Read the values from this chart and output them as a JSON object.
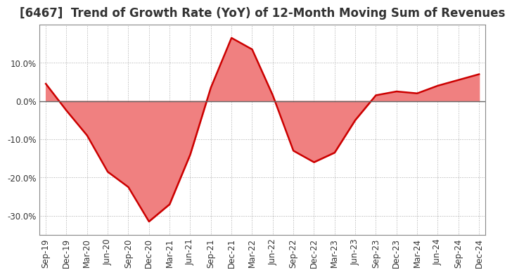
{
  "title": "[6467]  Trend of Growth Rate (YoY) of 12-Month Moving Sum of Revenues",
  "x_labels": [
    "Sep-19",
    "Dec-19",
    "Mar-20",
    "Jun-20",
    "Sep-20",
    "Dec-20",
    "Mar-21",
    "Jun-21",
    "Sep-21",
    "Dec-21",
    "Mar-22",
    "Jun-22",
    "Sep-22",
    "Dec-22",
    "Mar-23",
    "Jun-23",
    "Sep-23",
    "Dec-23",
    "Mar-24",
    "Jun-24",
    "Sep-24",
    "Dec-24"
  ],
  "y_values": [
    4.5,
    -2.5,
    -9.0,
    -18.5,
    -22.5,
    -31.5,
    -27.0,
    -14.0,
    3.5,
    16.5,
    13.5,
    1.5,
    -13.0,
    -16.0,
    -13.5,
    -5.0,
    1.5,
    2.5,
    2.0,
    4.0,
    5.5,
    7.0
  ],
  "line_color": "#cc0000",
  "line_width": 1.8,
  "fill_color": "#f08080",
  "fill_alpha": 1.0,
  "ylim": [
    -35,
    20
  ],
  "yticks": [
    -30.0,
    -20.0,
    -10.0,
    0.0,
    10.0
  ],
  "ytick_labels": [
    "-30.0%",
    "-20.0%",
    "-10.0%",
    "0.0%",
    "10.0%"
  ],
  "grid_color": "#aaaaaa",
  "grid_linestyle": ":",
  "bg_color": "#ffffff",
  "title_fontsize": 12,
  "tick_fontsize": 8.5,
  "zero_line_color": "#666666",
  "spine_color": "#888888"
}
